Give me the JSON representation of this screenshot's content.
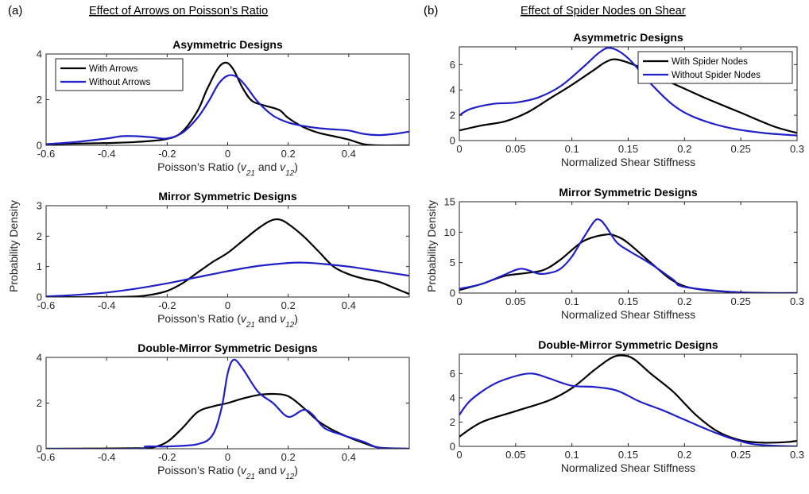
{
  "figure": {
    "panel_a_tag": "(a)",
    "panel_b_tag": "(b)",
    "panel_a_title": "Effect of Arrows on Poisson’s Ratio",
    "panel_b_title": "Effect of Spider Nodes on Shear",
    "ylabel_a": "Probability Density",
    "ylabel_b": "Probability Density"
  },
  "colors": {
    "with": "#000000",
    "without": "#2020c8"
  },
  "chart_data": [
    {
      "type": "line",
      "title": "Asymmetric Designs",
      "xlabel": "Poisson’s Ratio (v21 and v12)",
      "ylabel": "",
      "xlim": [
        -0.6,
        0.6
      ],
      "ylim": [
        0,
        4
      ],
      "xticks": [
        -0.6,
        -0.4,
        -0.2,
        0,
        0.2,
        0.4
      ],
      "xtick_labels": [
        "-0.6",
        "-0.4",
        "-0.2",
        "0",
        "0.2",
        "0.4"
      ],
      "yticks": [
        0,
        2,
        4
      ],
      "ytick_labels": [
        "0",
        "2",
        "4"
      ],
      "legend": "top-left",
      "series": [
        {
          "name": "With Arrows",
          "color": "#000000",
          "x": [
            -0.6,
            -0.4,
            -0.3,
            -0.2,
            -0.15,
            -0.1,
            -0.07,
            -0.04,
            -0.02,
            0,
            0.02,
            0.05,
            0.08,
            0.12,
            0.17,
            0.2,
            0.25,
            0.3,
            0.35,
            0.4,
            0.45,
            0.5,
            0.6
          ],
          "y": [
            0.05,
            0.1,
            0.15,
            0.28,
            0.6,
            1.5,
            2.4,
            3.2,
            3.55,
            3.6,
            3.3,
            2.5,
            1.95,
            1.75,
            1.55,
            1.2,
            0.8,
            0.55,
            0.4,
            0.25,
            0.05,
            0,
            0
          ]
        },
        {
          "name": "Without Arrows",
          "color": "#2020c8",
          "x": [
            -0.6,
            -0.5,
            -0.4,
            -0.35,
            -0.3,
            -0.25,
            -0.2,
            -0.15,
            -0.1,
            -0.06,
            -0.03,
            0,
            0.03,
            0.06,
            0.1,
            0.15,
            0.2,
            0.25,
            0.3,
            0.35,
            0.4,
            0.45,
            0.5,
            0.55,
            0.6
          ],
          "y": [
            0.05,
            0.15,
            0.3,
            0.4,
            0.4,
            0.35,
            0.3,
            0.55,
            1.2,
            2.0,
            2.7,
            3.05,
            3.0,
            2.6,
            1.9,
            1.3,
            1.0,
            0.85,
            0.75,
            0.7,
            0.65,
            0.5,
            0.45,
            0.5,
            0.6
          ]
        }
      ]
    },
    {
      "type": "line",
      "title": "Mirror Symmetric Designs",
      "xlabel": "Poisson’s Ratio (v21 and v12)",
      "ylabel": "",
      "xlim": [
        -0.6,
        0.6
      ],
      "ylim": [
        0,
        3
      ],
      "xticks": [
        -0.6,
        -0.4,
        -0.2,
        0,
        0.2,
        0.4
      ],
      "xtick_labels": [
        "-0.6",
        "-0.4",
        "-0.2",
        "0",
        "0.2",
        "0.4"
      ],
      "yticks": [
        0,
        1,
        2,
        3
      ],
      "ytick_labels": [
        "0",
        "1",
        "2",
        "3"
      ],
      "series": [
        {
          "name": "With Arrows",
          "color": "#000000",
          "x": [
            -0.6,
            -0.4,
            -0.3,
            -0.25,
            -0.2,
            -0.15,
            -0.1,
            -0.05,
            0,
            0.05,
            0.1,
            0.14,
            0.17,
            0.2,
            0.25,
            0.3,
            0.35,
            0.4,
            0.45,
            0.5,
            0.55,
            0.6
          ],
          "y": [
            0,
            0,
            0.02,
            0.08,
            0.2,
            0.45,
            0.8,
            1.15,
            1.45,
            1.85,
            2.25,
            2.5,
            2.55,
            2.4,
            2.0,
            1.5,
            1.0,
            0.75,
            0.6,
            0.5,
            0.3,
            0.1
          ]
        },
        {
          "name": "Without Arrows",
          "color": "#2020c8",
          "x": [
            -0.6,
            -0.5,
            -0.4,
            -0.3,
            -0.2,
            -0.1,
            0,
            0.1,
            0.2,
            0.25,
            0.3,
            0.4,
            0.5,
            0.6
          ],
          "y": [
            0.02,
            0.07,
            0.15,
            0.28,
            0.45,
            0.65,
            0.85,
            1.02,
            1.12,
            1.13,
            1.1,
            1.0,
            0.85,
            0.7
          ]
        }
      ]
    },
    {
      "type": "line",
      "title": "Double-Mirror Symmetric Designs",
      "xlabel": "Poisson’s Ratio (v21 and v12)",
      "ylabel": "",
      "xlim": [
        -0.6,
        0.6
      ],
      "ylim": [
        0,
        4
      ],
      "xticks": [
        -0.6,
        -0.4,
        -0.2,
        0,
        0.2,
        0.4
      ],
      "xtick_labels": [
        "-0.6",
        "-0.4",
        "-0.2",
        "0",
        "0.2",
        "0.4"
      ],
      "yticks": [
        0,
        2,
        4
      ],
      "ytick_labels": [
        "0",
        "2",
        "4"
      ],
      "series": [
        {
          "name": "With Arrows",
          "color": "#000000",
          "x": [
            -0.6,
            -0.3,
            -0.25,
            -0.2,
            -0.15,
            -0.1,
            -0.05,
            0,
            0.05,
            0.1,
            0.15,
            0.2,
            0.25,
            0.3,
            0.35,
            0.4,
            0.45,
            0.5,
            0.6
          ],
          "y": [
            0,
            0.02,
            0.05,
            0.3,
            0.9,
            1.6,
            1.85,
            2.0,
            2.2,
            2.35,
            2.4,
            2.3,
            1.8,
            1.2,
            0.8,
            0.5,
            0.25,
            0.05,
            0
          ]
        },
        {
          "name": "Without Arrows",
          "color": "#2020c8",
          "x": [
            -0.6,
            -0.3,
            -0.27,
            -0.2,
            -0.1,
            -0.05,
            -0.02,
            0,
            0.02,
            0.05,
            0.1,
            0.15,
            0.2,
            0.25,
            0.28,
            0.32,
            0.38,
            0.45,
            0.5,
            0.6
          ],
          "y": [
            0,
            0,
            0.1,
            0.1,
            0.2,
            0.6,
            1.8,
            3.3,
            3.9,
            3.5,
            2.5,
            2.0,
            1.4,
            1.7,
            1.5,
            0.9,
            0.6,
            0.3,
            0.05,
            0
          ]
        }
      ]
    },
    {
      "type": "line",
      "title": "Asymmetric Designs",
      "xlabel": "Normalized Shear Stiffness",
      "ylabel": "",
      "xlim": [
        0,
        0.3
      ],
      "ylim": [
        0,
        7.4
      ],
      "xticks": [
        0,
        0.05,
        0.1,
        0.15,
        0.2,
        0.25,
        0.3
      ],
      "xtick_labels": [
        "0",
        "0.05",
        "0.1",
        "0.15",
        "0.2",
        "0.25",
        "0.3"
      ],
      "yticks": [
        0,
        2,
        4,
        6
      ],
      "ytick_labels": [
        "0",
        "2",
        "4",
        "6"
      ],
      "legend": "top-right",
      "series": [
        {
          "name": "With Spider Nodes",
          "color": "#000000",
          "x": [
            0,
            0.02,
            0.04,
            0.06,
            0.08,
            0.1,
            0.12,
            0.13,
            0.14,
            0.16,
            0.18,
            0.2,
            0.22,
            0.25,
            0.28,
            0.3
          ],
          "y": [
            0.8,
            1.2,
            1.5,
            2.2,
            3.3,
            4.4,
            5.6,
            6.2,
            6.4,
            5.8,
            4.9,
            4.1,
            3.3,
            2.2,
            1.1,
            0.6
          ]
        },
        {
          "name": "Without Spider Nodes",
          "color": "#2020c8",
          "x": [
            0,
            0.01,
            0.03,
            0.05,
            0.07,
            0.09,
            0.11,
            0.125,
            0.135,
            0.15,
            0.17,
            0.19,
            0.21,
            0.24,
            0.27,
            0.3
          ],
          "y": [
            2.0,
            2.5,
            2.9,
            3.0,
            3.4,
            4.3,
            5.8,
            7.0,
            7.3,
            6.5,
            4.5,
            2.8,
            1.8,
            1.0,
            0.6,
            0.4
          ]
        }
      ]
    },
    {
      "type": "line",
      "title": "Mirror Symmetric Designs",
      "xlabel": "Normalized Shear Stiffness",
      "ylabel": "",
      "xlim": [
        0,
        0.3
      ],
      "ylim": [
        0,
        15
      ],
      "xticks": [
        0,
        0.05,
        0.1,
        0.15,
        0.2,
        0.25,
        0.3
      ],
      "xtick_labels": [
        "0",
        "0.05",
        "0.1",
        "0.15",
        "0.2",
        "0.25",
        "0.3"
      ],
      "yticks": [
        0,
        5,
        10,
        15
      ],
      "ytick_labels": [
        "0",
        "5",
        "10",
        "15"
      ],
      "series": [
        {
          "name": "With Spider Nodes",
          "color": "#000000",
          "x": [
            0,
            0.02,
            0.04,
            0.06,
            0.075,
            0.09,
            0.11,
            0.13,
            0.14,
            0.15,
            0.17,
            0.19,
            0.21,
            0.25,
            0.3
          ],
          "y": [
            0.5,
            1.5,
            2.8,
            3.3,
            3.8,
            5.5,
            8.5,
            9.6,
            9.3,
            8.2,
            5.0,
            2.0,
            0.7,
            0.1,
            0
          ]
        },
        {
          "name": "Without Spider Nodes",
          "color": "#2020c8",
          "x": [
            0,
            0.02,
            0.04,
            0.055,
            0.07,
            0.08,
            0.09,
            0.1,
            0.11,
            0.12,
            0.125,
            0.13,
            0.14,
            0.15,
            0.17,
            0.19,
            0.2,
            0.25,
            0.3
          ],
          "y": [
            0.7,
            1.5,
            3.0,
            4.0,
            3.2,
            3.3,
            4.0,
            6.0,
            9.0,
            11.8,
            12.0,
            11.0,
            8.3,
            7.0,
            4.8,
            2.2,
            1.0,
            0.1,
            0
          ]
        }
      ]
    },
    {
      "type": "line",
      "title": "Double-Mirror Symmetric Designs",
      "xlabel": "Normalized Shear Stiffness",
      "ylabel": "",
      "xlim": [
        0,
        0.3
      ],
      "ylim": [
        0,
        7.6
      ],
      "xticks": [
        0,
        0.05,
        0.1,
        0.15,
        0.2,
        0.25,
        0.3
      ],
      "xtick_labels": [
        "0",
        "0.05",
        "0.1",
        "0.15",
        "0.2",
        "0.25",
        "0.3"
      ],
      "yticks": [
        0,
        2,
        4,
        6
      ],
      "ytick_labels": [
        "0",
        "2",
        "4",
        "6"
      ],
      "series": [
        {
          "name": "With Spider Nodes",
          "color": "#000000",
          "x": [
            0,
            0.02,
            0.05,
            0.08,
            0.1,
            0.12,
            0.135,
            0.145,
            0.155,
            0.17,
            0.19,
            0.21,
            0.23,
            0.25,
            0.27,
            0.29,
            0.3
          ],
          "y": [
            0.8,
            2.0,
            2.9,
            3.8,
            4.8,
            6.3,
            7.3,
            7.5,
            7.2,
            6.0,
            4.5,
            2.6,
            1.2,
            0.5,
            0.3,
            0.35,
            0.45
          ]
        },
        {
          "name": "Without Spider Nodes",
          "color": "#2020c8",
          "x": [
            0,
            0.01,
            0.03,
            0.05,
            0.065,
            0.08,
            0.1,
            0.12,
            0.14,
            0.16,
            0.18,
            0.2,
            0.22,
            0.24,
            0.26,
            0.28,
            0.3
          ],
          "y": [
            2.6,
            3.8,
            5.1,
            5.8,
            6.0,
            5.6,
            5.0,
            4.9,
            4.6,
            3.7,
            3.0,
            2.2,
            1.4,
            0.7,
            0.2,
            0.05,
            0
          ]
        }
      ]
    }
  ]
}
